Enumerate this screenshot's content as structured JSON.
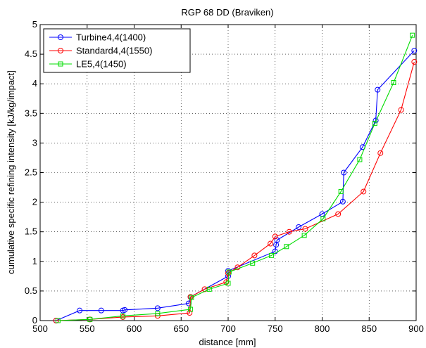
{
  "chart_data": {
    "type": "line",
    "title": "RGP 68 DD (Braviken)",
    "xlabel": "distance [mm]",
    "ylabel": "cumulative specific refining intensity [kJ/kg/impact]",
    "xlim": [
      500,
      900
    ],
    "ylim": [
      0,
      5
    ],
    "xticks": [
      500,
      550,
      600,
      650,
      700,
      750,
      800,
      850,
      900
    ],
    "yticks": [
      0,
      0.5,
      1,
      1.5,
      2,
      2.5,
      3,
      3.5,
      4,
      4.5,
      5
    ],
    "grid": true,
    "legend_position": "top-left",
    "series": [
      {
        "name": "Turbine4,4(1400)",
        "color": "#0000ff",
        "marker": "circle",
        "x": [
          517,
          542,
          565,
          588,
          590,
          625,
          658,
          660,
          700,
          700,
          750,
          751,
          752,
          775,
          800,
          822,
          823,
          843,
          857,
          859,
          898
        ],
        "y": [
          0.0,
          0.17,
          0.17,
          0.17,
          0.18,
          0.21,
          0.29,
          0.4,
          0.75,
          0.84,
          1.17,
          1.28,
          1.36,
          1.58,
          1.8,
          2.01,
          2.5,
          2.93,
          3.38,
          3.9,
          4.56
        ]
      },
      {
        "name": "Standard4,4(1550)",
        "color": "#ff0000",
        "marker": "circle",
        "x": [
          517,
          553,
          588,
          625,
          659,
          660,
          675,
          698,
          700,
          710,
          728,
          745,
          750,
          765,
          782,
          817,
          844,
          862,
          884,
          898
        ],
        "y": [
          0.0,
          0.02,
          0.06,
          0.08,
          0.13,
          0.4,
          0.53,
          0.65,
          0.8,
          0.9,
          1.1,
          1.3,
          1.42,
          1.5,
          1.55,
          1.8,
          2.18,
          2.83,
          3.56,
          4.37
        ]
      },
      {
        "name": "LE5,4(1450)",
        "color": "#00dd00",
        "marker": "square",
        "x": [
          519,
          553,
          588,
          625,
          660,
          661,
          680,
          700,
          701,
          726,
          746,
          762,
          781,
          801,
          820,
          840,
          856,
          876,
          896
        ],
        "y": [
          0.0,
          0.02,
          0.08,
          0.12,
          0.19,
          0.39,
          0.53,
          0.63,
          0.82,
          0.97,
          1.1,
          1.25,
          1.44,
          1.72,
          2.18,
          2.72,
          3.33,
          4.02,
          4.82
        ]
      }
    ]
  }
}
